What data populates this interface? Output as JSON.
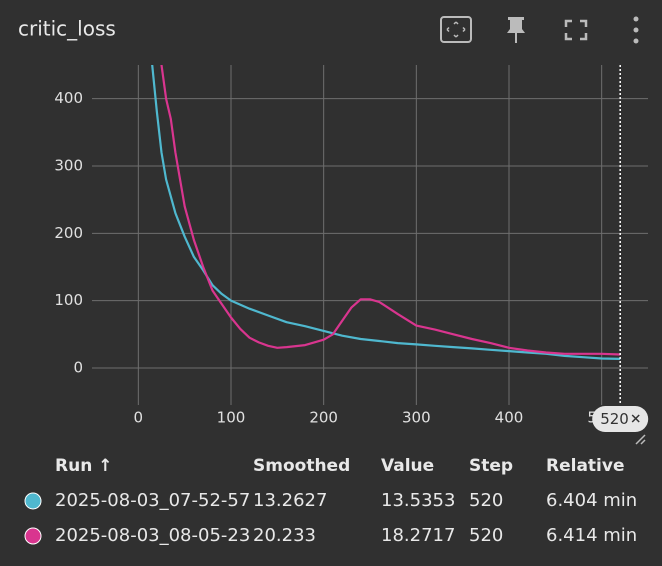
{
  "chart_data": {
    "type": "line",
    "title": "critic_loss",
    "xlim": [
      -50,
      550
    ],
    "ylim": [
      -55,
      450
    ],
    "xticks": [
      0,
      100,
      200,
      300,
      400,
      500
    ],
    "yticks": [
      0,
      100,
      200,
      300,
      400
    ],
    "grid": true,
    "cursor_step": 520,
    "legend_columns": [
      "Run ↑",
      "Smoothed",
      "Value",
      "Step",
      "Relative"
    ],
    "series": [
      {
        "name": "2025-08-03_07-52-57",
        "color": "#4fb8cf",
        "smoothed": 13.2627,
        "value": 13.5353,
        "step": 520,
        "relative": "6.404 min",
        "x": [
          10,
          15,
          20,
          25,
          30,
          40,
          50,
          60,
          70,
          80,
          90,
          100,
          120,
          140,
          160,
          180,
          200,
          220,
          240,
          260,
          280,
          300,
          320,
          340,
          360,
          380,
          400,
          420,
          440,
          460,
          480,
          500,
          520
        ],
        "values": [
          600,
          450,
          380,
          320,
          280,
          230,
          195,
          165,
          145,
          123,
          110,
          100,
          88,
          78,
          68,
          62,
          55,
          48,
          43,
          40,
          37,
          35,
          33,
          31,
          29,
          27,
          25,
          23,
          21,
          18,
          16,
          14,
          13.5
        ]
      },
      {
        "name": "2025-08-03_08-05-23",
        "color": "#d9358f",
        "smoothed": 20.233,
        "value": 18.2717,
        "step": 520,
        "relative": "6.414 min",
        "x": [
          20,
          25,
          30,
          35,
          40,
          50,
          60,
          70,
          80,
          90,
          100,
          110,
          120,
          130,
          140,
          150,
          160,
          180,
          200,
          210,
          220,
          230,
          240,
          250,
          260,
          280,
          300,
          320,
          340,
          360,
          380,
          400,
          420,
          440,
          460,
          480,
          500,
          520
        ],
        "values": [
          600,
          450,
          400,
          370,
          320,
          240,
          190,
          150,
          115,
          95,
          75,
          58,
          45,
          38,
          33,
          30,
          31,
          34,
          42,
          50,
          70,
          90,
          102,
          102,
          98,
          80,
          63,
          57,
          50,
          43,
          37,
          30,
          26,
          23,
          21,
          21,
          21,
          20
        ]
      }
    ]
  }
}
